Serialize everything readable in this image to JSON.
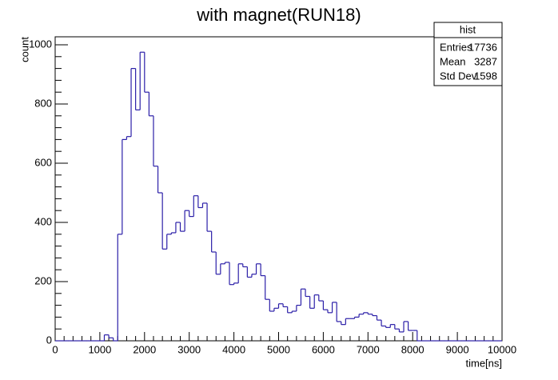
{
  "chart_data": {
    "type": "histogram",
    "title": "with magnet(RUN18)",
    "x_label": "time[ns]",
    "y_label": "count",
    "color": "#2b1fa8",
    "bins": [
      0,
      100,
      200,
      300,
      400,
      500,
      600,
      700,
      800,
      900,
      1000,
      1100,
      1200,
      1300,
      1400,
      1500,
      1600,
      1700,
      1800,
      1900,
      2000,
      2100,
      2200,
      2300,
      2400,
      2500,
      2600,
      2700,
      2800,
      2900,
      3000,
      3100,
      3200,
      3300,
      3400,
      3500,
      3600,
      3700,
      3800,
      3900,
      4000,
      4100,
      4200,
      4300,
      4400,
      4500,
      4600,
      4700,
      4800,
      4900,
      5000,
      5100,
      5200,
      5300,
      5400,
      5500,
      5600,
      5700,
      5800,
      5900,
      6000,
      6100,
      6200,
      6300,
      6400,
      6500,
      6600,
      6700,
      6800,
      6900,
      7000,
      7100,
      7200,
      7300,
      7400,
      7500,
      7600,
      7700,
      7800,
      7900,
      8000,
      8100,
      8200,
      8300,
      8400,
      8500,
      8600,
      8700,
      8800,
      8900,
      9000,
      9100,
      9200,
      9300,
      9400,
      9500,
      9600,
      9700,
      9800,
      9900,
      10000
    ],
    "values": [
      0,
      0,
      0,
      0,
      0,
      0,
      0,
      0,
      0,
      0,
      0,
      20,
      10,
      0,
      360,
      680,
      690,
      920,
      780,
      975,
      840,
      760,
      590,
      500,
      310,
      360,
      365,
      400,
      370,
      440,
      420,
      490,
      450,
      465,
      370,
      300,
      225,
      260,
      265,
      190,
      195,
      260,
      250,
      215,
      225,
      260,
      220,
      140,
      100,
      110,
      125,
      115,
      95,
      100,
      120,
      175,
      150,
      110,
      155,
      135,
      105,
      95,
      130,
      65,
      55,
      75,
      75,
      80,
      90,
      95,
      90,
      85,
      70,
      50,
      45,
      55,
      40,
      30,
      65,
      35,
      35,
      0,
      0,
      0,
      0,
      0,
      0,
      0,
      0,
      0,
      0,
      0,
      0,
      0,
      0,
      0,
      0,
      0,
      0,
      0
    ],
    "xlim": [
      0,
      10000
    ],
    "ylim": [
      0,
      1027
    ],
    "xticks": [
      0,
      1000,
      2000,
      3000,
      4000,
      5000,
      6000,
      7000,
      8000,
      9000,
      10000
    ],
    "yticks": [
      0,
      200,
      400,
      600,
      800,
      1000
    ],
    "stats": {
      "title": "hist",
      "rows": [
        [
          "Entries",
          "17736"
        ],
        [
          "Mean",
          "3287"
        ],
        [
          "Std Dev",
          "1598"
        ]
      ]
    }
  }
}
